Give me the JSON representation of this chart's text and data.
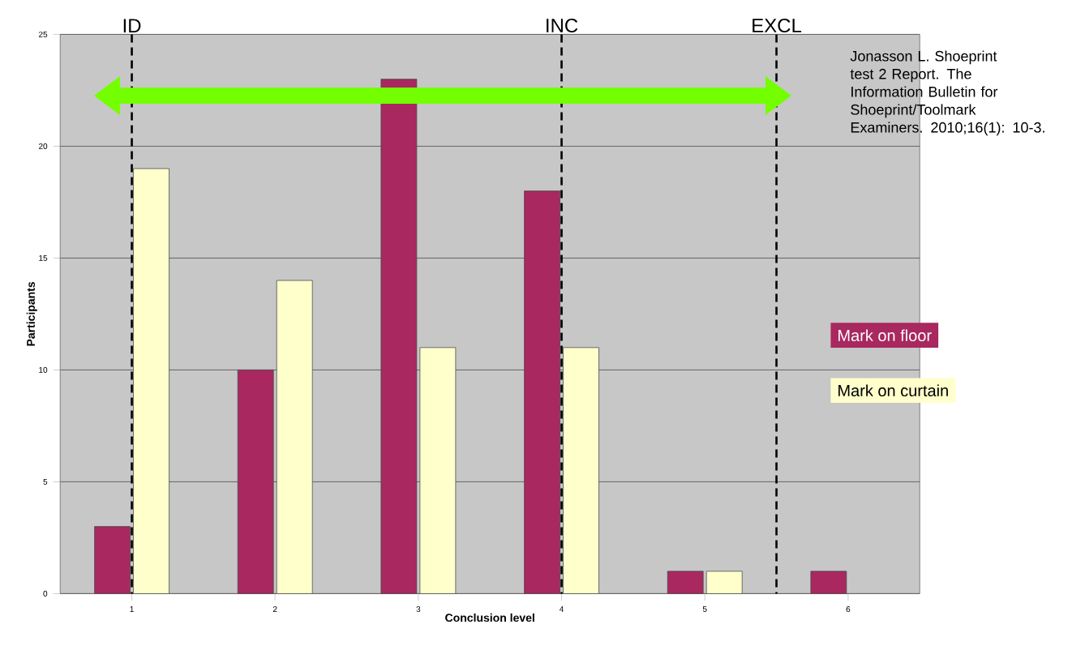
{
  "chart_data": {
    "type": "bar",
    "xlabel": "Conclusion level",
    "ylabel": "Participants",
    "x": [
      1,
      2,
      3,
      4,
      5,
      6
    ],
    "xlim": [
      0.5,
      6.5
    ],
    "xticks": [
      1,
      2,
      3,
      4,
      5,
      6
    ],
    "ylim": [
      0,
      25
    ],
    "yticks": [
      0,
      5,
      10,
      15,
      20,
      25
    ],
    "grid": "y",
    "legend": "right",
    "series": [
      {
        "name": "Mark on floor",
        "color": "#a8285f",
        "values": [
          3,
          10,
          23,
          18,
          1,
          1
        ]
      },
      {
        "name": "Mark on curtain",
        "color": "#ffffcc",
        "values": [
          19,
          14,
          11,
          11,
          1,
          null
        ]
      }
    ],
    "ref_lines": [
      {
        "axis": "x",
        "value": 1,
        "label": "ID",
        "color": "#000000",
        "line_style": "dashed"
      },
      {
        "axis": "x",
        "value": 4,
        "label": "INC",
        "color": "#000000",
        "line_style": "dashed"
      },
      {
        "axis": "x",
        "value": 5.5,
        "label": "EXCL",
        "color": "#000000",
        "line_style": "dashed"
      }
    ],
    "annotations": [
      "Jonasson L. Shoeprint test 2 Report. The Information Bulletin for Shoeprint/Toolmark Examiners. 2010;16(1): 10-3."
    ]
  }
}
